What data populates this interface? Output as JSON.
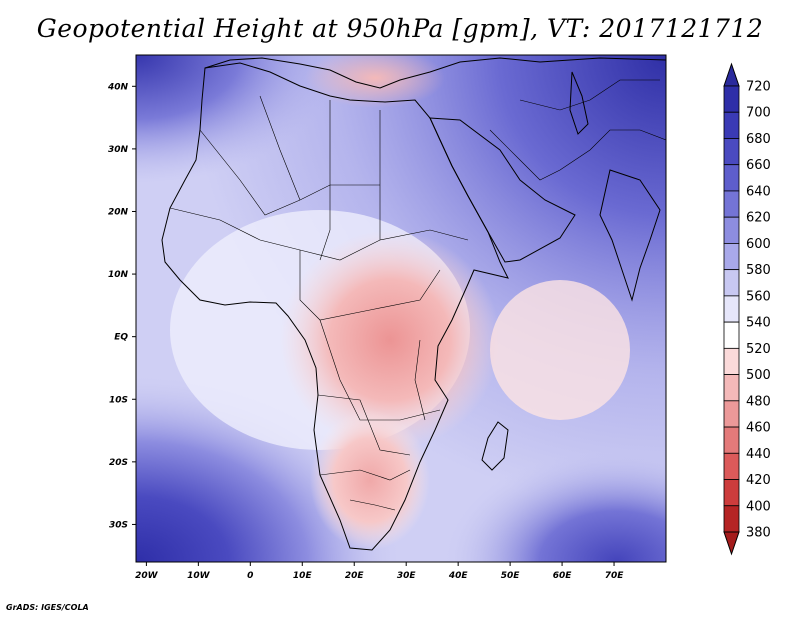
{
  "title": "Geopotential Height at 950hPa [gpm], VT: 2017121712",
  "credit": "GrADS: IGES/COLA",
  "map": {
    "lon_range": [
      -22,
      80
    ],
    "lat_range": [
      -36,
      45
    ],
    "lon_ticks": [
      {
        "value": -20,
        "label": "20W"
      },
      {
        "value": -10,
        "label": "10W"
      },
      {
        "value": 0,
        "label": "0"
      },
      {
        "value": 10,
        "label": "10E"
      },
      {
        "value": 20,
        "label": "20E"
      },
      {
        "value": 30,
        "label": "30E"
      },
      {
        "value": 40,
        "label": "40E"
      },
      {
        "value": 50,
        "label": "50E"
      },
      {
        "value": 60,
        "label": "60E"
      },
      {
        "value": 70,
        "label": "70E"
      }
    ],
    "lat_ticks": [
      {
        "value": 40,
        "label": "40N"
      },
      {
        "value": 30,
        "label": "30N"
      },
      {
        "value": 20,
        "label": "20N"
      },
      {
        "value": 10,
        "label": "10N"
      },
      {
        "value": 0,
        "label": "EQ"
      },
      {
        "value": -10,
        "label": "10S"
      },
      {
        "value": -20,
        "label": "20S"
      },
      {
        "value": -30,
        "label": "30S"
      }
    ]
  },
  "colorbar": {
    "levels": [
      {
        "label": "720",
        "color": "#3b2fb0"
      },
      {
        "label": "700",
        "color": "#2e2ea8"
      },
      {
        "label": "680",
        "color": "#3a3ab5"
      },
      {
        "label": "660",
        "color": "#4a4ac0"
      },
      {
        "label": "640",
        "color": "#5e5ecc"
      },
      {
        "label": "620",
        "color": "#7474d6"
      },
      {
        "label": "600",
        "color": "#8d8de0"
      },
      {
        "label": "580",
        "color": "#a9a9ea"
      },
      {
        "label": "560",
        "color": "#c8c8f2"
      },
      {
        "label": "540",
        "color": "#e6e6fa"
      },
      {
        "label": "520",
        "color": "#ffffff"
      },
      {
        "label": "500",
        "color": "#fbdada"
      },
      {
        "label": "480",
        "color": "#f4b9b9"
      },
      {
        "label": "460",
        "color": "#ec9999"
      },
      {
        "label": "440",
        "color": "#e47a7a"
      },
      {
        "label": "420",
        "color": "#dc5a5a"
      },
      {
        "label": "400",
        "color": "#cd3c3c"
      },
      {
        "label": "380",
        "color": "#b52424"
      }
    ],
    "bottom_color": "#a41c1c",
    "top_color": "#2a2a9c"
  }
}
